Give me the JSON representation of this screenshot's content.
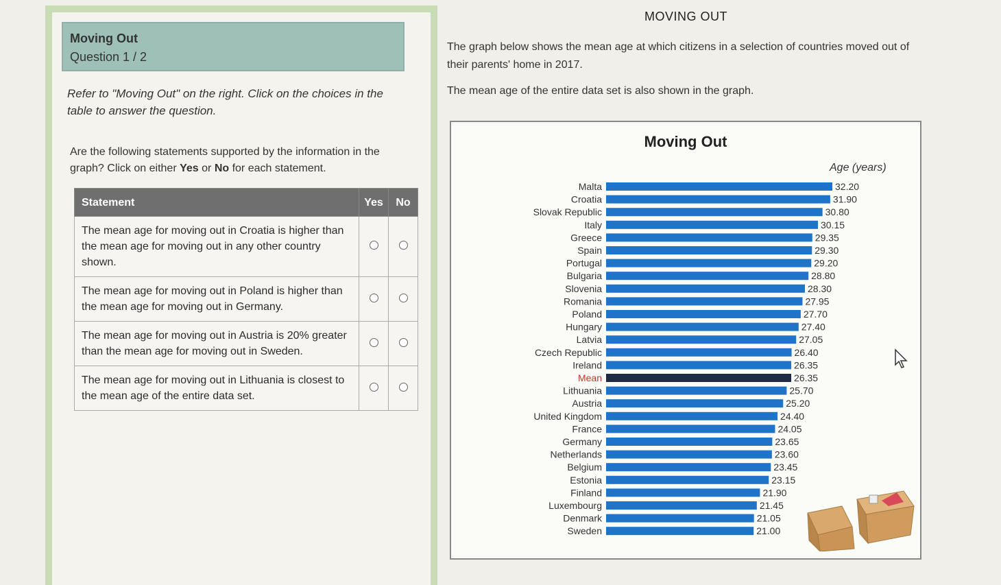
{
  "question": {
    "title": "Moving Out",
    "number": "Question 1 / 2",
    "instructions": "Refer to \"Moving Out\" on the right. Click on the choices in the table to answer the question.",
    "prompt_before": "Are the following statements supported by the information in the graph? Click on either ",
    "prompt_yes": "Yes",
    "prompt_or": " or ",
    "prompt_no": "No",
    "prompt_after": " for each statement.",
    "table": {
      "header_statement": "Statement",
      "header_yes": "Yes",
      "header_no": "No",
      "rows": [
        "The mean age for moving out in Croatia is higher than the mean age for moving out in any other country shown.",
        "The mean age for moving out in Poland is higher than the mean age for moving out in Germany.",
        "The mean age for moving out in Austria is 20% greater than the mean age for moving out in Sweden.",
        "The mean age for moving out in Lithuania is closest to the mean age of the entire data set."
      ]
    }
  },
  "content": {
    "title": "MOVING OUT",
    "description1": "The graph below shows the mean age at which citizens in a selection of countries moved out of their parents' home in 2017.",
    "description2": "The mean age of the entire data set is also shown in the graph."
  },
  "colors": {
    "bar": "#1f73c9",
    "mean_bar": "#1f2a44",
    "mean_label": "#c0392b"
  },
  "chart_data": {
    "type": "bar",
    "orientation": "horizontal",
    "title": "Moving Out",
    "xlabel": "Age (years)",
    "categories": [
      "Malta",
      "Croatia",
      "Slovak Republic",
      "Italy",
      "Greece",
      "Spain",
      "Portugal",
      "Bulgaria",
      "Slovenia",
      "Romania",
      "Poland",
      "Hungary",
      "Latvia",
      "Czech Republic",
      "Ireland",
      "Mean",
      "Lithuania",
      "Austria",
      "United Kingdom",
      "France",
      "Germany",
      "Netherlands",
      "Belgium",
      "Estonia",
      "Finland",
      "Luxembourg",
      "Denmark",
      "Sweden"
    ],
    "values": [
      32.2,
      31.9,
      30.8,
      30.15,
      29.35,
      29.3,
      29.2,
      28.8,
      28.3,
      27.95,
      27.7,
      27.4,
      27.05,
      26.4,
      26.35,
      26.35,
      25.7,
      25.2,
      24.4,
      24.05,
      23.65,
      23.6,
      23.45,
      23.15,
      21.9,
      21.45,
      21.05,
      21.0
    ],
    "value_labels": [
      "32.20",
      "31.90",
      "30.80",
      "30.15",
      "29.35",
      "29.30",
      "29.20",
      "28.80",
      "28.30",
      "27.95",
      "27.70",
      "27.40",
      "27.05",
      "26.40",
      "26.35",
      "26.35",
      "25.70",
      "25.20",
      "24.40",
      "24.05",
      "23.65",
      "23.60",
      "23.45",
      "23.15",
      "21.90",
      "21.45",
      "21.05",
      "21.00"
    ],
    "highlight": "Mean"
  }
}
